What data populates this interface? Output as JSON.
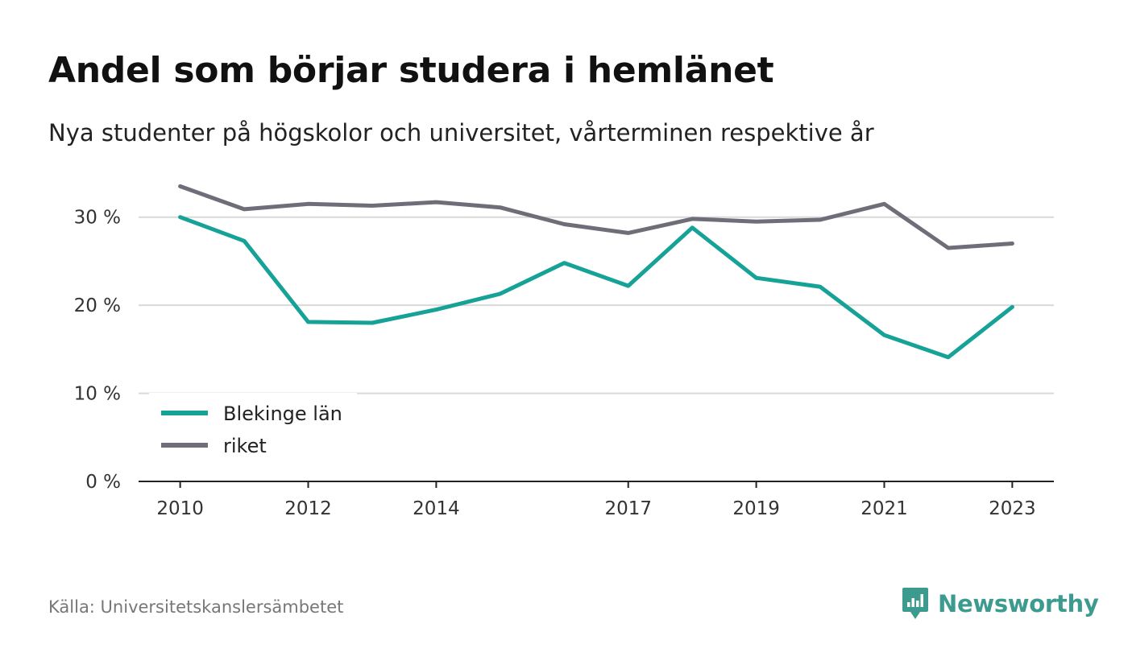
{
  "title": "Andel som börjar studera i hemlänet",
  "subtitle": "Nya studenter på högskolor och universitet, vårterminen respektive år",
  "source": "Källa: Universitetskanslersämbetet",
  "brand": {
    "name": "Newsworthy",
    "icon": "newsworthy-logo-icon",
    "color": "#3c9a8f"
  },
  "chart_data": {
    "type": "line",
    "x": [
      2010,
      2011,
      2012,
      2013,
      2014,
      2015,
      2016,
      2017,
      2018,
      2019,
      2020,
      2021,
      2022,
      2023
    ],
    "x_tick_values": [
      2010,
      2012,
      2014,
      2017,
      2019,
      2021,
      2023
    ],
    "x_tick_labels": [
      "2010",
      "2012",
      "2014",
      "2017",
      "2019",
      "2021",
      "2023"
    ],
    "y_tick_values": [
      0,
      10,
      20,
      30
    ],
    "y_tick_labels": [
      "0 %",
      "10 %",
      "20 %",
      "30 %"
    ],
    "ylim": [
      0,
      35
    ],
    "xlim": [
      2009.35,
      2023.65
    ],
    "grid": "horizontal",
    "legend_position": "bottom-left",
    "series": [
      {
        "name": "Blekinge län",
        "color": "#16a297",
        "values": [
          30.0,
          27.3,
          18.1,
          18.0,
          19.5,
          21.3,
          24.8,
          22.2,
          28.8,
          23.1,
          22.1,
          16.6,
          14.1,
          19.8
        ]
      },
      {
        "name": "riket",
        "color": "#6e6e78",
        "values": [
          33.5,
          30.9,
          31.5,
          31.3,
          31.7,
          31.1,
          29.2,
          28.2,
          29.8,
          29.5,
          29.7,
          31.5,
          26.5,
          27.0
        ]
      }
    ]
  }
}
